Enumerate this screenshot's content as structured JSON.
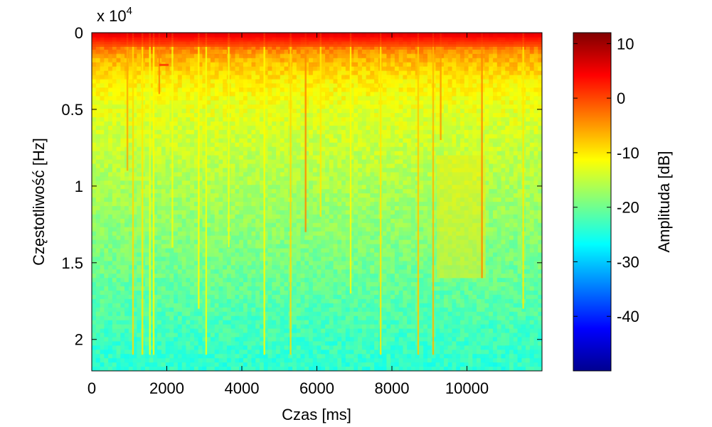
{
  "chart_data": {
    "type": "heatmap",
    "subtype": "spectrogram",
    "xlabel": "Czas [ms]",
    "ylabel": "Częstotliwość [Hz]",
    "y_exponent_label": "x 10",
    "y_exponent_power": "4",
    "xlim": [
      0,
      12000
    ],
    "ylim": [
      0,
      22050
    ],
    "y_direction": "reversed",
    "x_ticks": [
      0,
      2000,
      4000,
      6000,
      8000,
      10000
    ],
    "x_tick_labels": [
      "0",
      "2000",
      "4000",
      "6000",
      "8000",
      "10000"
    ],
    "y_ticks": [
      0,
      5000,
      10000,
      15000,
      20000
    ],
    "y_tick_labels": [
      "0",
      "0.5",
      "1",
      "1.5",
      "2"
    ],
    "colorbar": {
      "label": "Amplituda [dB]",
      "colormap": "jet",
      "range": [
        -50,
        12
      ],
      "ticks": [
        10,
        0,
        -10,
        -20,
        -30,
        -40
      ],
      "tick_labels": [
        "10",
        "0",
        "-10",
        "-20",
        "-30",
        "-40"
      ]
    },
    "amplitude_profile_db": {
      "frequency_hz": [
        0,
        500,
        1500,
        3000,
        5000,
        8000,
        11000,
        14000,
        17000,
        20000,
        22050
      ],
      "mean_db": [
        6,
        0,
        -6,
        -10,
        -13,
        -15,
        -17,
        -19,
        -21,
        -23,
        -24
      ]
    },
    "transients": [
      {
        "time_ms": 950,
        "level_db": -6,
        "freq_extent_hz": 9000
      },
      {
        "time_ms": 1100,
        "level_db": -9,
        "freq_extent_hz": 21000
      },
      {
        "time_ms": 1350,
        "level_db": -10,
        "freq_extent_hz": 21000
      },
      {
        "time_ms": 1550,
        "level_db": -12,
        "freq_extent_hz": 21000
      },
      {
        "time_ms": 1650,
        "level_db": -11,
        "freq_extent_hz": 21000
      },
      {
        "time_ms": 1800,
        "level_db": -4,
        "freq_extent_hz": 4000
      },
      {
        "time_ms": 2150,
        "level_db": -12,
        "freq_extent_hz": 14000
      },
      {
        "time_ms": 2850,
        "level_db": -11,
        "freq_extent_hz": 18000
      },
      {
        "time_ms": 3050,
        "level_db": -12,
        "freq_extent_hz": 21000
      },
      {
        "time_ms": 3650,
        "level_db": -12,
        "freq_extent_hz": 14000
      },
      {
        "time_ms": 4600,
        "level_db": -11,
        "freq_extent_hz": 21000
      },
      {
        "time_ms": 5300,
        "level_db": -9,
        "freq_extent_hz": 21000
      },
      {
        "time_ms": 5700,
        "level_db": -4,
        "freq_extent_hz": 13000
      },
      {
        "time_ms": 6100,
        "level_db": -10,
        "freq_extent_hz": 12000
      },
      {
        "time_ms": 6900,
        "level_db": -11,
        "freq_extent_hz": 17000
      },
      {
        "time_ms": 7700,
        "level_db": -10,
        "freq_extent_hz": 21000
      },
      {
        "time_ms": 8700,
        "level_db": -8,
        "freq_extent_hz": 21000
      },
      {
        "time_ms": 9100,
        "level_db": -7,
        "freq_extent_hz": 21000
      },
      {
        "time_ms": 9300,
        "level_db": -5,
        "freq_extent_hz": 7000
      },
      {
        "time_ms": 10400,
        "level_db": -4,
        "freq_extent_hz": 16000
      },
      {
        "time_ms": 11500,
        "level_db": -10,
        "freq_extent_hz": 18000
      }
    ],
    "annotations": [
      {
        "time_start_ms": 1800,
        "time_end_ms": 2050,
        "freq_hz": 2100,
        "level_db": 0
      }
    ],
    "bright_region": {
      "time_start_ms": 9200,
      "time_end_ms": 10500,
      "freq_start_hz": 8000,
      "freq_end_hz": 16000,
      "level_db": -10
    },
    "grid": false,
    "legend": "none"
  }
}
